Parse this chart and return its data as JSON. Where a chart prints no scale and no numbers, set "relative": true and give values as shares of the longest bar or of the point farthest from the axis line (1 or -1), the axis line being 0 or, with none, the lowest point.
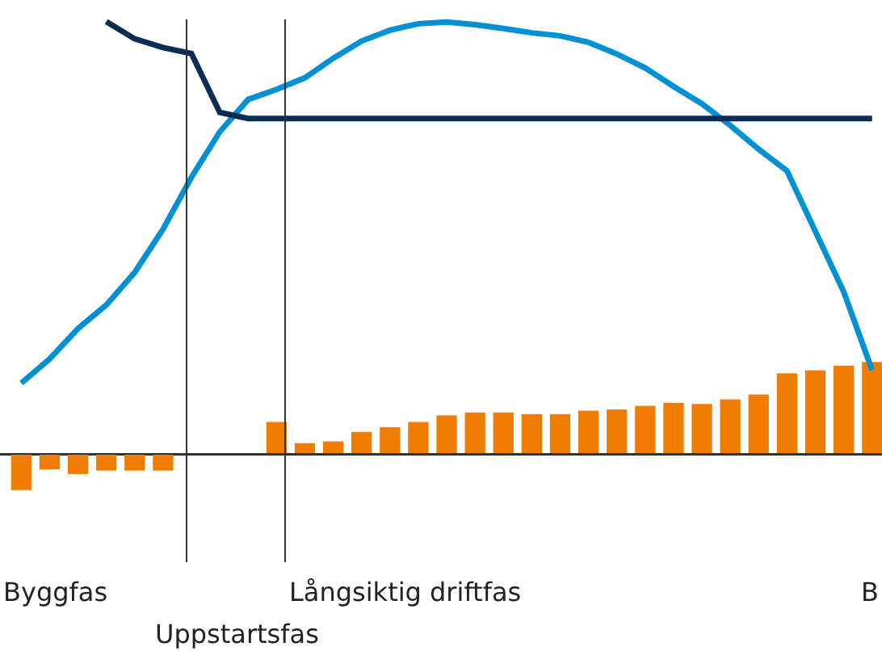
{
  "chart_data": [
    {
      "type": "line",
      "relative": true,
      "legend": false,
      "grid": false,
      "categories": [
        null,
        null,
        null,
        null,
        null,
        null,
        null,
        null,
        null,
        null,
        null,
        null,
        null,
        null,
        null,
        null,
        null,
        null,
        null,
        null,
        null,
        null,
        null,
        null,
        null,
        null,
        null,
        null,
        null,
        null,
        null
      ],
      "series": [
        {
          "color": "#0090d4",
          "values": [
            0.164,
            0.22,
            0.29,
            0.345,
            0.42,
            0.52,
            0.64,
            0.745,
            0.82,
            0.843,
            0.87,
            0.915,
            0.955,
            0.98,
            0.995,
            0.999,
            0.993,
            0.984,
            0.974,
            0.967,
            0.952,
            0.925,
            0.893,
            0.85,
            0.81,
            0.76,
            0.705,
            0.655,
            0.515,
            0.375,
            0.194
          ]
        },
        {
          "color": "#0a2c55",
          "values": [
            null,
            null,
            null,
            1.0,
            0.96,
            0.94,
            0.926,
            0.79,
            0.776,
            0.776,
            0.776,
            0.776,
            0.776,
            0.776,
            0.776,
            0.776,
            0.776,
            0.776,
            0.776,
            0.776,
            0.776,
            0.776,
            0.776,
            0.776,
            0.776,
            0.776,
            0.776,
            0.776,
            0.776,
            0.776,
            0.776
          ]
        }
      ]
    },
    {
      "type": "bar",
      "relative": true,
      "legend": false,
      "grid": false,
      "categories": [
        null,
        null,
        null,
        null,
        null,
        null,
        null,
        null,
        null,
        null,
        null,
        null,
        null,
        null,
        null,
        null,
        null,
        null,
        null,
        null,
        null,
        null,
        null,
        null,
        null,
        null,
        null,
        null,
        null,
        null,
        null
      ],
      "color": "#f07d00",
      "values": [
        -0.385,
        -0.16,
        -0.211,
        -0.174,
        -0.174,
        -0.174,
        0,
        0,
        0,
        0.352,
        0.122,
        0.141,
        0.244,
        0.296,
        0.352,
        0.423,
        0.455,
        0.455,
        0.437,
        0.437,
        0.474,
        0.488,
        0.526,
        0.559,
        0.545,
        0.596,
        0.648,
        0.878,
        0.911,
        0.962,
        1.0
      ],
      "annotations": [
        "Byggfas",
        "Uppstartsfas",
        "Långsiktig driftfas",
        "B"
      ]
    }
  ]
}
